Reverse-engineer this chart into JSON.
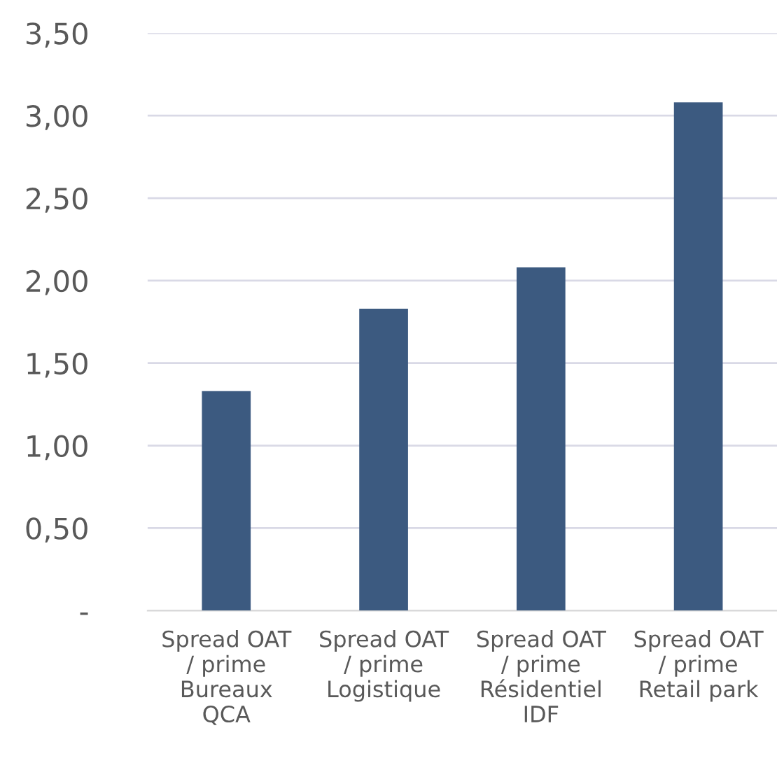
{
  "chart_data": {
    "type": "bar",
    "categories": [
      "Spread OAT\n/ prime\nBureaux\nQCA",
      "Spread OAT\n/ prime\nLogistique",
      "Spread OAT\n/ prime\nRésidentiel\nIDF",
      "Spread OAT\n/ prime\nRetail park"
    ],
    "values": [
      1.33,
      1.83,
      2.08,
      3.08
    ],
    "color": "#3c5a80",
    "ylim": [
      0,
      3.5
    ],
    "yticks": [
      {
        "value": 0,
        "label": "-"
      },
      {
        "value": 0.5,
        "label": "0,50"
      },
      {
        "value": 1,
        "label": "1,00"
      },
      {
        "value": 1.5,
        "label": "1,50"
      },
      {
        "value": 2,
        "label": "2,00"
      },
      {
        "value": 2.5,
        "label": "2,50"
      },
      {
        "value": 3,
        "label": "3,00"
      },
      {
        "value": 3.5,
        "label": "3,50"
      }
    ],
    "grid": "y"
  }
}
